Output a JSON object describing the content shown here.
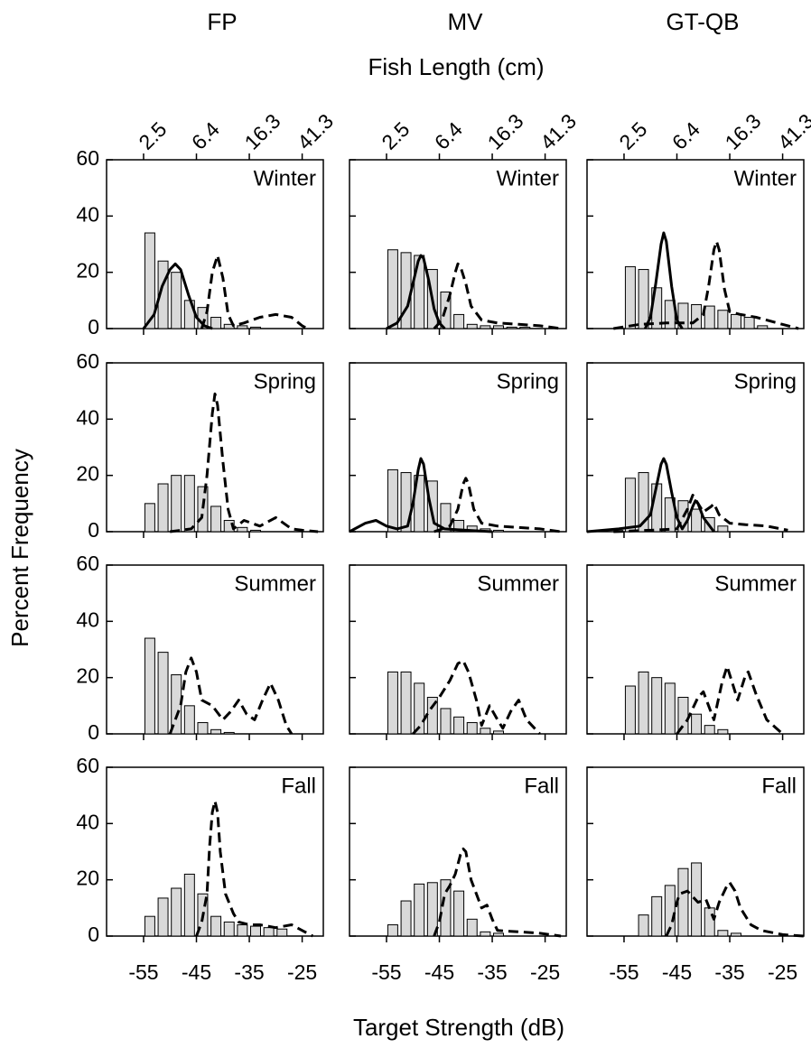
{
  "column_titles": [
    "FP",
    "MV",
    "GT-QB"
  ],
  "top_x_label": "Fish Length (cm)",
  "x_label": "Target Strength (dB)",
  "y_label": "Percent Frequency",
  "axes": {
    "xlim": [
      -62,
      -21
    ],
    "ylim": [
      0,
      60
    ],
    "yticks": [
      0,
      20,
      40,
      60
    ],
    "xticks": [
      -55,
      -45,
      -35,
      -25
    ],
    "top_xticks": [
      {
        "value": -55,
        "label": "2.5"
      },
      {
        "value": -45,
        "label": "6.4"
      },
      {
        "value": -35,
        "label": "16.3"
      },
      {
        "value": -25,
        "label": "41.3"
      }
    ]
  },
  "bar_color": "#d9d9d9",
  "chart_data": [
    {
      "type": "histogram",
      "title": "Winter",
      "bins": [
        -55,
        -52.5,
        -50,
        -47.5,
        -45,
        -42.5,
        -40,
        -37.5,
        -35,
        -32.5,
        -30,
        -27.5,
        -25,
        -22.5,
        -20
      ],
      "values": [
        34,
        24,
        20,
        10,
        7.5,
        4,
        1.5,
        1,
        0.5,
        null,
        null,
        null,
        null,
        null
      ],
      "series": [
        {
          "style": "solid",
          "color": "#000000",
          "x": [
            -55,
            -53,
            -51.5,
            -50,
            -49,
            -48,
            -46.5,
            -45,
            -43.5,
            -42
          ],
          "values": [
            0,
            5,
            15,
            21,
            23,
            21,
            12,
            4,
            1,
            0
          ]
        },
        {
          "style": "dashed",
          "color": "#000000",
          "x": [
            -44,
            -43,
            -42,
            -41,
            -40,
            -39,
            -38,
            -36,
            -33,
            -30,
            -27,
            -25,
            -24
          ],
          "values": [
            0,
            6,
            20,
            26,
            18,
            5,
            1,
            2,
            4,
            5,
            4,
            1,
            0
          ]
        }
      ]
    },
    {
      "type": "histogram",
      "title": "Winter",
      "bins": [
        -55,
        -52.5,
        -50,
        -47.5,
        -45,
        -42.5,
        -40,
        -37.5,
        -35,
        -32.5,
        -30,
        -27.5,
        -25,
        -22.5,
        -20
      ],
      "values": [
        28,
        27,
        26,
        21,
        13,
        5,
        1.5,
        1,
        1,
        0.5,
        0.5,
        null,
        null,
        null
      ],
      "series": [
        {
          "style": "solid",
          "color": "#000000",
          "x": [
            -55,
            -53,
            -51,
            -50,
            -49,
            -48.5,
            -48,
            -47,
            -46,
            -45,
            -44
          ],
          "values": [
            0,
            2,
            8,
            16,
            24,
            26,
            25,
            17,
            7,
            2,
            0
          ]
        },
        {
          "style": "dashed",
          "color": "#000000",
          "x": [
            -46,
            -44.5,
            -43,
            -42,
            -41.5,
            -41,
            -40,
            -39,
            -37,
            -34,
            -30,
            -26,
            -22
          ],
          "values": [
            0,
            3,
            12,
            20,
            23,
            22,
            16,
            8,
            3,
            2,
            1.5,
            1,
            0
          ]
        }
      ]
    },
    {
      "type": "histogram",
      "title": "Winter",
      "bins": [
        -55,
        -52.5,
        -50,
        -47.5,
        -45,
        -42.5,
        -40,
        -37.5,
        -35,
        -32.5,
        -30,
        -27.5,
        -25,
        -22.5,
        -20
      ],
      "values": [
        22,
        21,
        14.5,
        10,
        9,
        8.5,
        8,
        6.5,
        5,
        4,
        1,
        null,
        null,
        null
      ],
      "series": [
        {
          "style": "solid",
          "color": "#000000",
          "x": [
            -51,
            -50,
            -49,
            -48,
            -47.5,
            -47,
            -46,
            -45,
            -44
          ],
          "values": [
            0,
            4,
            16,
            30,
            34,
            31,
            15,
            3,
            0
          ]
        },
        {
          "style": "dashed",
          "color": "#000000",
          "x": [
            -57,
            -52,
            -47,
            -42,
            -40,
            -39,
            -38,
            -37.5,
            -37,
            -36,
            -35,
            -33,
            -30,
            -26,
            -22
          ],
          "values": [
            0,
            1.5,
            2,
            2,
            5,
            15,
            28,
            31,
            28,
            14,
            6,
            5,
            4,
            2,
            0
          ]
        }
      ]
    },
    {
      "type": "histogram",
      "title": "Spring",
      "bins": [
        -55,
        -52.5,
        -50,
        -47.5,
        -45,
        -42.5,
        -40,
        -37.5,
        -35,
        -32.5,
        -30,
        -27.5,
        -25,
        -22.5,
        -20
      ],
      "values": [
        10,
        17,
        20,
        20,
        16,
        9,
        4,
        1.5,
        0.5,
        null,
        null,
        null,
        null,
        null
      ],
      "series": [
        {
          "style": "dashed",
          "color": "#000000",
          "x": [
            -50,
            -46,
            -44,
            -43,
            -42,
            -41.5,
            -41,
            -40,
            -39,
            -38,
            -36,
            -33,
            -30,
            -27,
            -25,
            -22
          ],
          "values": [
            0,
            1,
            5,
            20,
            42,
            49,
            45,
            25,
            8,
            1,
            4,
            2,
            5,
            1,
            0.5,
            0
          ]
        }
      ]
    },
    {
      "type": "histogram",
      "title": "Spring",
      "bins": [
        -55,
        -52.5,
        -50,
        -47.5,
        -45,
        -42.5,
        -40,
        -37.5,
        -35,
        -32.5,
        -30,
        -27.5,
        -25,
        -22.5,
        -20
      ],
      "values": [
        22,
        21,
        20,
        18,
        10,
        4,
        2,
        1,
        0.5,
        null,
        null,
        null,
        null,
        null
      ],
      "series": [
        {
          "style": "solid",
          "color": "#000000",
          "x": [
            -62,
            -59,
            -57,
            -55,
            -53,
            -51,
            -50,
            -49,
            -48.5,
            -48,
            -47,
            -46,
            -44,
            -40,
            -35
          ],
          "values": [
            0,
            3,
            4,
            2,
            1,
            2,
            10,
            22,
            26,
            24,
            12,
            3,
            1,
            0.5,
            0
          ]
        },
        {
          "style": "dashed",
          "color": "#000000",
          "x": [
            -46,
            -43,
            -41.5,
            -40.5,
            -40,
            -39.5,
            -38.5,
            -37,
            -34,
            -30,
            -26,
            -22
          ],
          "values": [
            0,
            2,
            8,
            17,
            19,
            17,
            8,
            3,
            2,
            1.5,
            1,
            0
          ]
        }
      ]
    },
    {
      "type": "histogram",
      "title": "Spring",
      "bins": [
        -55,
        -52.5,
        -50,
        -47.5,
        -45,
        -42.5,
        -40,
        -37.5,
        -35,
        -32.5,
        -30,
        -27.5,
        -25,
        -22.5,
        -20
      ],
      "values": [
        19,
        21,
        17,
        12,
        11,
        8,
        5,
        2,
        null,
        null,
        null,
        null,
        null,
        null
      ],
      "series": [
        {
          "style": "solid",
          "color": "#000000",
          "x": [
            -62,
            -56,
            -52,
            -50,
            -49,
            -48,
            -47.5,
            -47,
            -46,
            -45,
            -44,
            -43,
            -42,
            -41.5,
            -41,
            -40,
            -38
          ],
          "values": [
            0,
            1,
            2,
            6,
            15,
            24,
            26,
            24,
            14,
            5,
            1,
            4,
            9,
            11,
            10,
            5,
            0
          ]
        },
        {
          "style": "dashed",
          "color": "#000000",
          "x": [
            -57,
            -50,
            -45,
            -43,
            -42,
            -40,
            -38.5,
            -38,
            -37,
            -35,
            -32,
            -28,
            -24
          ],
          "values": [
            0,
            0.5,
            1,
            8,
            13,
            7,
            9,
            10,
            6,
            3,
            2.5,
            2,
            0.5
          ]
        }
      ]
    },
    {
      "type": "histogram",
      "title": "Summer",
      "bins": [
        -55,
        -52.5,
        -50,
        -47.5,
        -45,
        -42.5,
        -40,
        -37.5,
        -35,
        -32.5,
        -30,
        -27.5,
        -25,
        -22.5,
        -20
      ],
      "values": [
        34,
        29,
        21,
        10,
        4,
        1.5,
        0.5,
        null,
        null,
        null,
        null,
        null,
        null,
        null
      ],
      "series": [
        {
          "style": "dashed",
          "color": "#000000",
          "x": [
            -50,
            -48,
            -47,
            -46,
            -45,
            -44,
            -42,
            -40,
            -38.5,
            -37,
            -35.5,
            -34,
            -32.5,
            -31,
            -29.5,
            -28,
            -27
          ],
          "values": [
            0,
            10,
            22,
            27,
            22,
            12,
            10,
            5,
            8,
            12,
            7,
            5,
            12,
            18,
            12,
            3,
            0
          ]
        }
      ]
    },
    {
      "type": "histogram",
      "title": "Summer",
      "bins": [
        -55,
        -52.5,
        -50,
        -47.5,
        -45,
        -42.5,
        -40,
        -37.5,
        -35,
        -32.5,
        -30,
        -27.5,
        -25,
        -22.5,
        -20
      ],
      "values": [
        22,
        22,
        18,
        13,
        9,
        6,
        4,
        2,
        1,
        null,
        null,
        null,
        null,
        null
      ],
      "series": [
        {
          "style": "dashed",
          "color": "#000000",
          "x": [
            -50,
            -48.5,
            -47,
            -45,
            -43,
            -41.5,
            -40.5,
            -39.5,
            -38,
            -37,
            -35.5,
            -34,
            -33,
            -31.5,
            -30,
            -28.5,
            -26
          ],
          "values": [
            0,
            3,
            8,
            13,
            19,
            25,
            26,
            22,
            12,
            3,
            10,
            5,
            2,
            8,
            12,
            5,
            0
          ]
        }
      ]
    },
    {
      "type": "histogram",
      "title": "Summer",
      "bins": [
        -55,
        -52.5,
        -50,
        -47.5,
        -45,
        -42.5,
        -40,
        -37.5,
        -35,
        -32.5,
        -30,
        -27.5,
        -25,
        -22.5,
        -20
      ],
      "values": [
        17,
        22,
        20,
        18,
        13,
        7,
        3,
        1.5,
        null,
        null,
        null,
        null,
        null,
        null
      ],
      "series": [
        {
          "style": "dashed",
          "color": "#000000",
          "x": [
            -45,
            -43,
            -41,
            -40,
            -39,
            -38,
            -36.5,
            -35.5,
            -34.5,
            -33.5,
            -32,
            -31.5,
            -30,
            -28,
            -25
          ],
          "values": [
            0,
            5,
            13,
            15,
            10,
            5,
            18,
            24,
            18,
            12,
            21,
            22,
            14,
            5,
            0
          ]
        }
      ]
    },
    {
      "type": "histogram",
      "title": "Fall",
      "bins": [
        -55,
        -52.5,
        -50,
        -47.5,
        -45,
        -42.5,
        -40,
        -37.5,
        -35,
        -32.5,
        -30,
        -27.5,
        -25,
        -22.5,
        -20
      ],
      "values": [
        7,
        13.5,
        17,
        22,
        15,
        7,
        5,
        4,
        3.5,
        3,
        2.5,
        null,
        null,
        null
      ],
      "series": [
        {
          "style": "dashed",
          "color": "#000000",
          "x": [
            -45,
            -44,
            -43,
            -42.5,
            -42,
            -41.5,
            -41,
            -40.5,
            -39.5,
            -38,
            -37,
            -35,
            -33,
            -30,
            -27,
            -25,
            -23
          ],
          "values": [
            0,
            5,
            15,
            32,
            44,
            48,
            44,
            30,
            15,
            8,
            5,
            4,
            4,
            3,
            4,
            2,
            0
          ]
        }
      ]
    },
    {
      "type": "histogram",
      "title": "Fall",
      "bins": [
        -55,
        -52.5,
        -50,
        -47.5,
        -45,
        -42.5,
        -40,
        -37.5,
        -35,
        -32.5,
        -30,
        -27.5,
        -25,
        -22.5,
        -20
      ],
      "values": [
        4,
        12.5,
        18.5,
        19,
        20,
        16,
        6,
        1.5,
        1,
        null,
        null,
        null,
        null,
        null
      ],
      "series": [
        {
          "style": "dashed",
          "color": "#000000",
          "x": [
            -46,
            -45,
            -44,
            -43,
            -42,
            -41,
            -40.5,
            -40,
            -39,
            -38,
            -37,
            -36,
            -35,
            -34,
            -30,
            -26,
            -22
          ],
          "values": [
            0,
            5,
            15,
            18,
            22,
            29,
            31,
            30,
            20,
            15,
            10,
            11,
            6,
            2,
            1.5,
            1,
            0
          ]
        }
      ]
    },
    {
      "type": "histogram",
      "title": "Fall",
      "bins": [
        -55,
        -52.5,
        -50,
        -47.5,
        -45,
        -42.5,
        -40,
        -37.5,
        -35,
        -32.5,
        -30,
        -27.5,
        -25,
        -22.5,
        -20
      ],
      "values": [
        null,
        7.5,
        14,
        18,
        24,
        26,
        10,
        2,
        1,
        null,
        null,
        null,
        null,
        null
      ],
      "series": [
        {
          "style": "dashed",
          "color": "#000000",
          "x": [
            -47,
            -46,
            -45,
            -44.5,
            -43,
            -41,
            -39.5,
            -38,
            -37,
            -35.5,
            -35,
            -34,
            -33,
            -31,
            -29,
            -25,
            -21
          ],
          "values": [
            0,
            4,
            12,
            15,
            16,
            12,
            13,
            6,
            12,
            18,
            19,
            16,
            10,
            4,
            2,
            0.5,
            0
          ]
        }
      ]
    }
  ]
}
